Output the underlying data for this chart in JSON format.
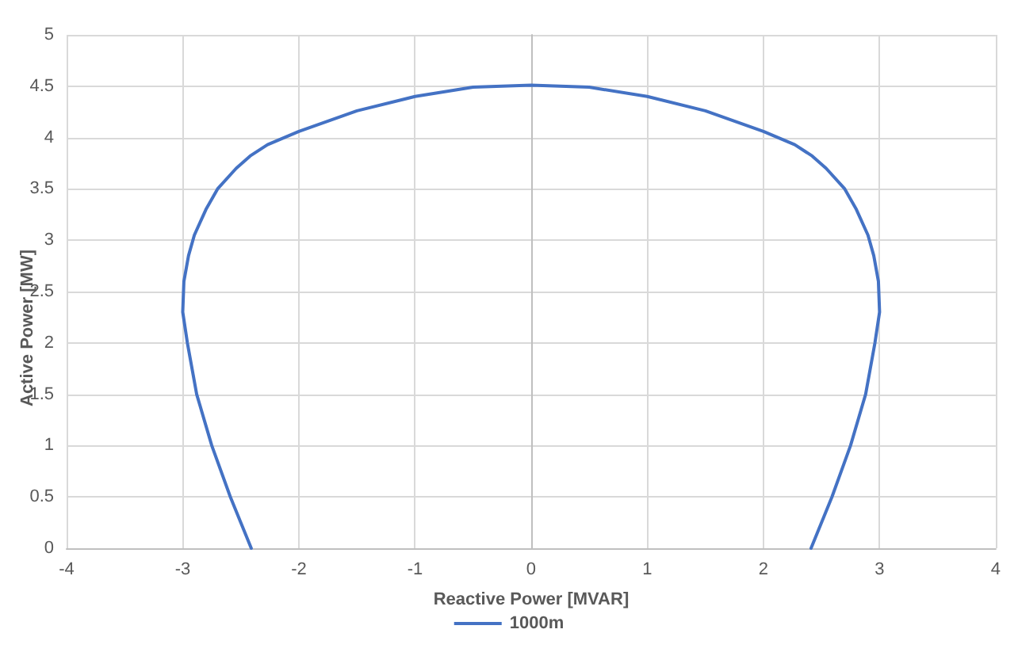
{
  "chart_data": {
    "type": "line",
    "xlabel": "Reactive Power [MVAR]",
    "ylabel": "Active Power [MW]",
    "xlim": [
      -4,
      4
    ],
    "xticks": [
      -4,
      -3,
      -2,
      -1,
      0,
      1,
      2,
      3,
      4
    ],
    "ylim": [
      0,
      5
    ],
    "yticks": [
      0,
      0.5,
      1,
      1.5,
      2,
      2.5,
      3,
      3.5,
      4,
      4.5,
      5
    ],
    "grid": true,
    "legend": "bottom",
    "marker": "none",
    "line_style": "solid",
    "series": [
      {
        "name": "1000m",
        "color": "#4472c4",
        "x": [
          -2.41,
          -2.59,
          -2.75,
          -2.88,
          -2.96,
          -3.0,
          -2.99,
          -2.95,
          -2.9,
          -2.8,
          -2.7,
          -2.54,
          -2.42,
          -2.27,
          -2.0,
          -1.5,
          -1.0,
          -0.5,
          0,
          0.5,
          1.0,
          1.5,
          2.0,
          2.27,
          2.42,
          2.54,
          2.7,
          2.8,
          2.9,
          2.95,
          2.99,
          3.0,
          2.96,
          2.88,
          2.75,
          2.59,
          2.41
        ],
        "values": [
          0,
          0.5,
          1,
          1.5,
          2,
          2.3,
          2.6,
          2.85,
          3.05,
          3.3,
          3.5,
          3.7,
          3.82,
          3.93,
          4.06,
          4.26,
          4.4,
          4.49,
          4.51,
          4.49,
          4.4,
          4.26,
          4.06,
          3.93,
          3.82,
          3.7,
          3.5,
          3.3,
          3.05,
          2.85,
          2.6,
          2.3,
          2,
          1.5,
          1,
          0.5,
          0
        ]
      }
    ]
  }
}
